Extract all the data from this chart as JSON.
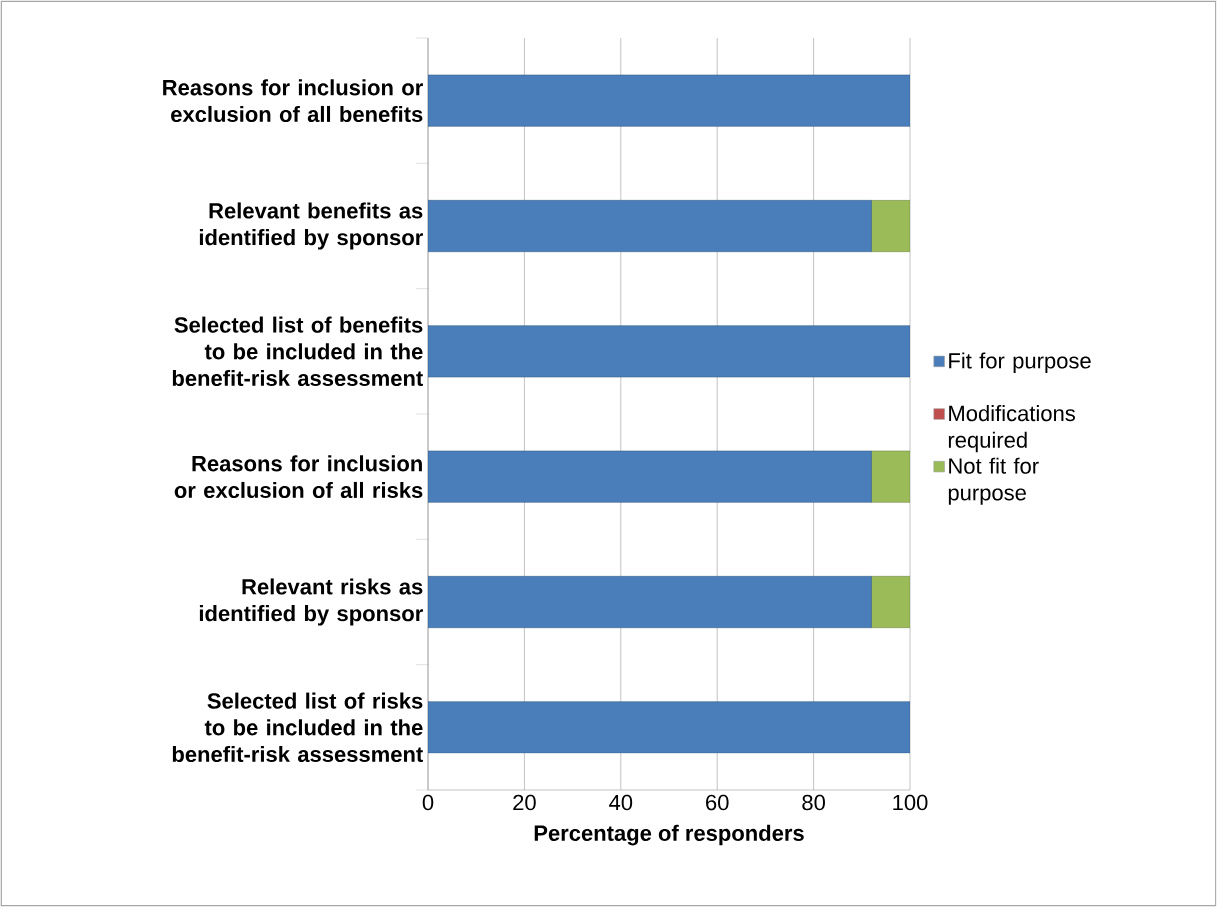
{
  "chart_data": {
    "type": "bar",
    "orientation": "horizontal",
    "stacked": true,
    "categories": [
      "Reasons for inclusion or exclusion of all benefits",
      "Relevant benefits as identified by sponsor",
      "Selected list of benefits to be included in the benefit-risk assessment",
      "Reasons for inclusion or exclusion of all risks",
      "Relevant risks as identified by sponsor",
      "Selected list of risks to be included in the benefit-risk assessment"
    ],
    "series": [
      {
        "name": "Fit for purpose",
        "color": "#4a7ebb",
        "values": [
          100,
          92,
          100,
          92,
          92,
          100
        ]
      },
      {
        "name": "Modifications required",
        "color": "#c0504d",
        "values": [
          0,
          0,
          0,
          0,
          0,
          0
        ]
      },
      {
        "name": "Not fit for purpose",
        "color": "#9bbb59",
        "values": [
          0,
          8,
          0,
          8,
          8,
          0
        ]
      }
    ],
    "xlabel": "Percentage of responders",
    "xlim": [
      0,
      100
    ],
    "xticks": [
      0,
      20,
      40,
      60,
      80,
      100
    ],
    "grid": "x",
    "legend": "right"
  }
}
